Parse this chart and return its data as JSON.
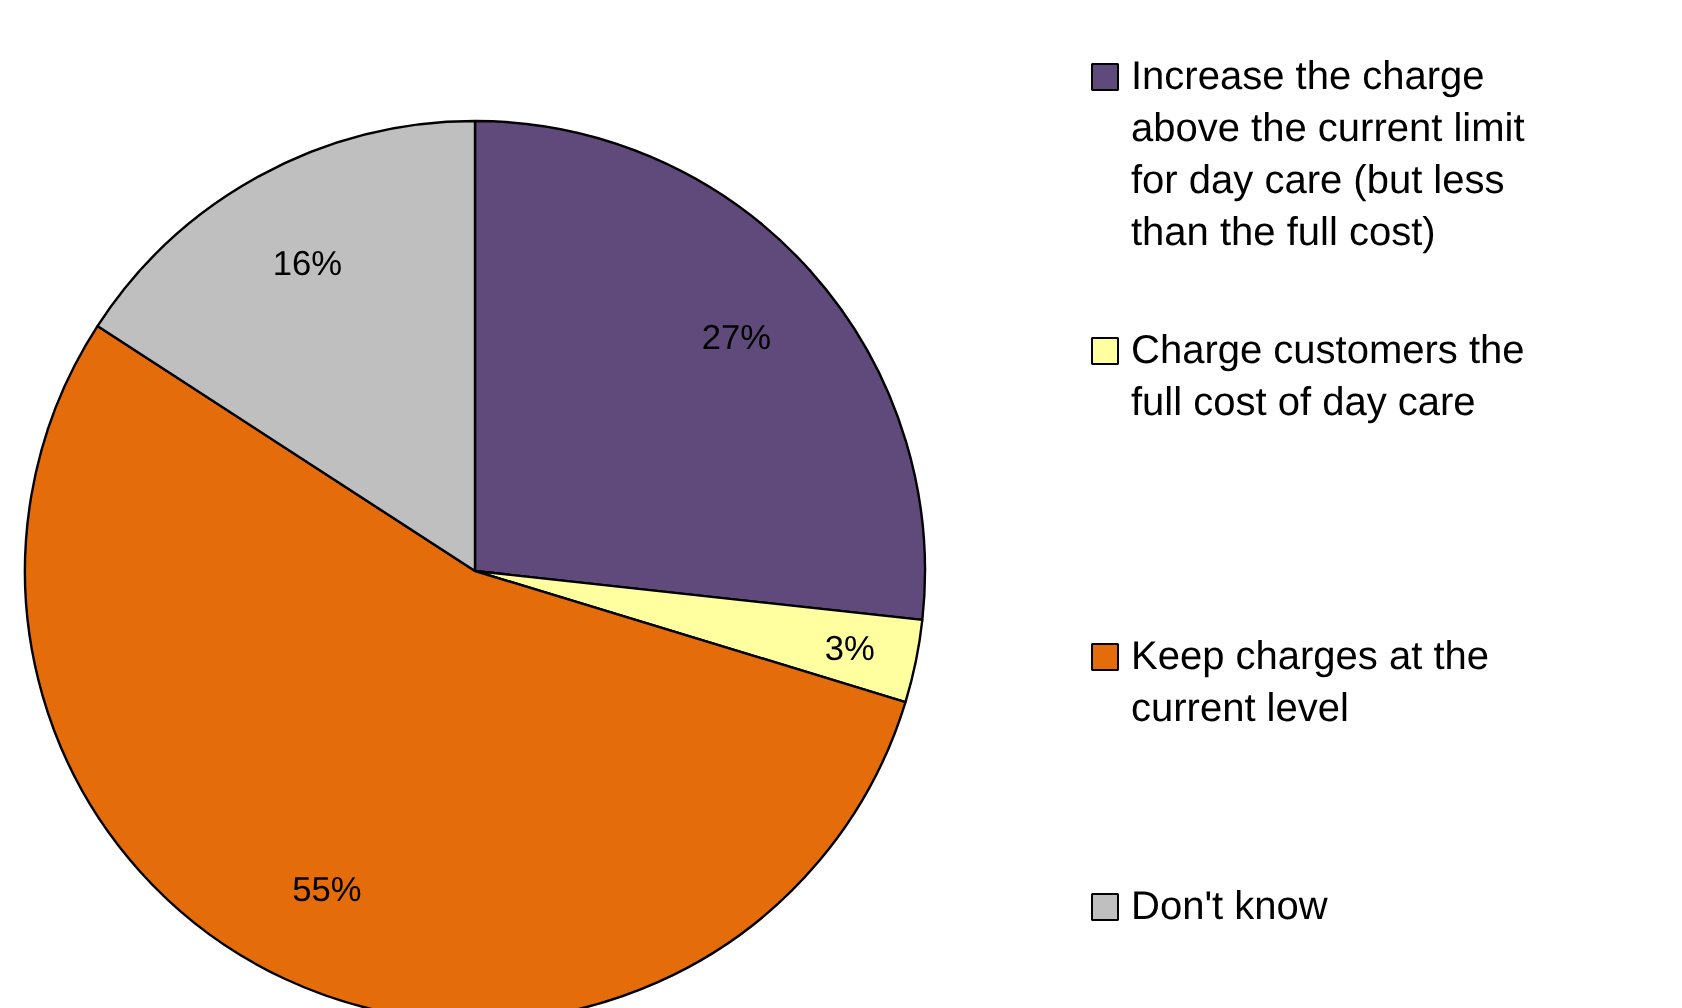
{
  "chart_data": {
    "type": "pie",
    "categories": [
      "Increase the charge above the current limit for day care (but less than the full cost)",
      "Charge customers the full cost of day care",
      "Keep charges at the current level",
      "Don't know"
    ],
    "values": [
      27,
      3,
      55,
      16
    ],
    "colors": [
      "#604a7b",
      "#ffffa0",
      "#e46c0a",
      "#bfbfbf"
    ],
    "value_labels": [
      "27%",
      "3%",
      "55%",
      "16%"
    ],
    "legend": "right"
  }
}
